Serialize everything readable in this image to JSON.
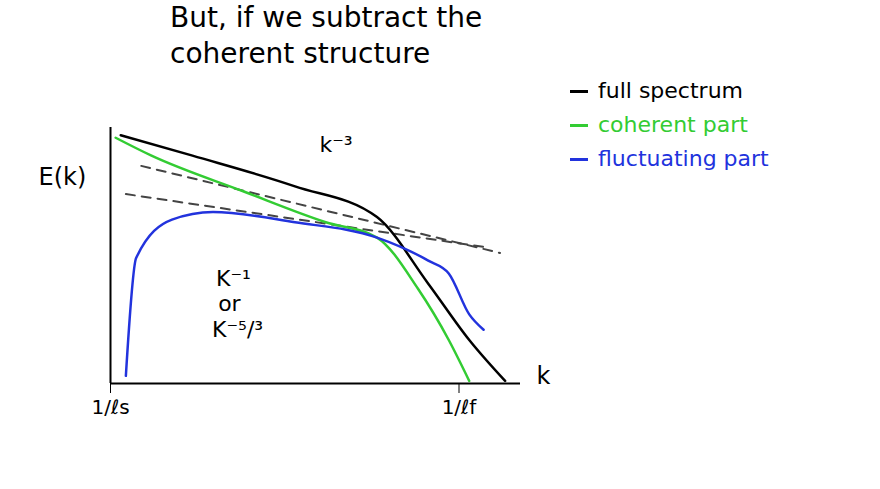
{
  "chart_data": {
    "type": "line",
    "title": "But, if we subtract the coherent structure",
    "x_label": "k",
    "y_label": "E(k)",
    "xlim": [
      0,
      100
    ],
    "ylim": [
      0,
      100
    ],
    "xticks": [
      {
        "value": 0,
        "label": "1/ℓs"
      },
      {
        "value": 85,
        "label": "1/ℓf"
      }
    ],
    "yticks": [],
    "tick_labels": "x",
    "grid": false,
    "legend": "right",
    "series": [
      {
        "name": "full spectrum",
        "color": "#000000",
        "line_style": "solid",
        "x": [
          2.5,
          20,
          45,
          65,
          77.5,
          87.5,
          96.25
        ],
        "values": [
          97,
          89,
          77,
          65,
          39,
          17,
          1
        ]
      },
      {
        "name": "coherent part",
        "color": "#33cc33",
        "line_style": "solid",
        "x": [
          1.25,
          10,
          32.5,
          52.5,
          65,
          75,
          82.5,
          87.5
        ],
        "values": [
          96,
          89,
          75,
          63,
          57,
          37,
          17,
          1
        ]
      },
      {
        "name": "fluctuating part",
        "color": "#2233dd",
        "line_style": "solid",
        "x": [
          3.75,
          6.25,
          15,
          25,
          45,
          65,
          77.5,
          82.5,
          87.5,
          91
        ],
        "values": [
          3,
          49,
          64,
          67,
          63,
          57,
          48,
          43,
          27,
          21
        ]
      }
    ],
    "guides": [
      {
        "color": "#444444",
        "line_style": "dashed",
        "x": [
          7.5,
          95
        ],
        "values": [
          85,
          51
        ]
      },
      {
        "color": "#444444",
        "line_style": "dashed",
        "x": [
          3.75,
          92.5
        ],
        "values": [
          74,
          53
        ]
      }
    ],
    "annotations": [
      {
        "text": "k⁻³",
        "x": 55,
        "y": 93
      },
      {
        "text": "K⁻¹",
        "x": 30,
        "y": 41
      },
      {
        "text": "or",
        "x": 29,
        "y": 31
      },
      {
        "text": "K⁻⁵/³",
        "x": 31,
        "y": 21
      }
    ]
  }
}
